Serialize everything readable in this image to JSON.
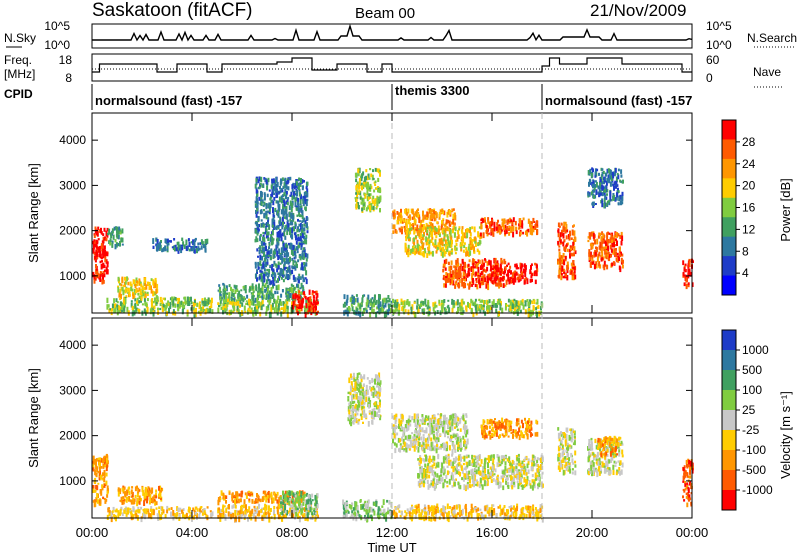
{
  "header": {
    "title": "Saskatoon (fitACF)",
    "beam": "Beam 00",
    "date": "21/Nov/2009"
  },
  "panels": {
    "nsky": {
      "left_label": "N.Sky",
      "right_label": "N.Search",
      "ticks": [
        "10^5",
        "10^0"
      ],
      "ticks_right": [
        "10^5",
        "10^0"
      ]
    },
    "freq": {
      "left_label_1": "Freq.",
      "left_label_2": "[MHz]",
      "left_ticks": [
        "18",
        "8"
      ],
      "right_label": "Nave",
      "right_ticks": [
        "60",
        "0"
      ]
    },
    "cpid": {
      "label": "CPID",
      "modes": [
        {
          "text": "normalsound (fast) -157",
          "start_hour": 0
        },
        {
          "text": "themis 3300",
          "start_hour": 12
        },
        {
          "text": "normalsound (fast) -157",
          "start_hour": 18
        }
      ]
    }
  },
  "chart_data": [
    {
      "type": "heatmap",
      "title": "",
      "ylabel": "Slant Range [km]",
      "xlabel": "",
      "ylim": [
        180,
        4600
      ],
      "xlim": [
        0,
        24
      ],
      "yticks": [
        1000,
        2000,
        3000,
        4000
      ],
      "colorbar_label": "Power [dB]",
      "colorbar_ticks": [
        "28",
        "24",
        "20",
        "16",
        "12",
        "8",
        "4"
      ],
      "colors": [
        "#ff0000",
        "#ff5a00",
        "#ff9600",
        "#ffcc00",
        "#80cc40",
        "#40a060",
        "#2d78a0",
        "#1e3cc8",
        "#0000ff"
      ],
      "regions": [
        {
          "x": [
            0.0,
            0.6
          ],
          "y": [
            900,
            2100
          ],
          "level": 0
        },
        {
          "x": [
            0.6,
            1.2
          ],
          "y": [
            1700,
            2100
          ],
          "level": 5
        },
        {
          "x": [
            1.0,
            2.6
          ],
          "y": [
            550,
            1000
          ],
          "level": 3
        },
        {
          "x": [
            0.5,
            4.8
          ],
          "y": [
            200,
            550
          ],
          "level": 4
        },
        {
          "x": [
            2.4,
            4.6
          ],
          "y": [
            1600,
            1850
          ],
          "level": 6
        },
        {
          "x": [
            5.0,
            8.5
          ],
          "y": [
            500,
            850
          ],
          "level": 5
        },
        {
          "x": [
            5.0,
            9.0
          ],
          "y": [
            200,
            500
          ],
          "level": 4
        },
        {
          "x": [
            8.0,
            9.0
          ],
          "y": [
            200,
            700
          ],
          "level": 0
        },
        {
          "x": [
            6.5,
            8.6
          ],
          "y": [
            900,
            3200
          ],
          "level": 6
        },
        {
          "x": [
            10.0,
            12.0
          ],
          "y": [
            200,
            600
          ],
          "level": 5
        },
        {
          "x": [
            10.5,
            11.5
          ],
          "y": [
            2500,
            3400
          ],
          "level": 4
        },
        {
          "x": [
            12.0,
            14.5
          ],
          "y": [
            2000,
            2500
          ],
          "level": 2
        },
        {
          "x": [
            12.5,
            15.5
          ],
          "y": [
            1500,
            2100
          ],
          "level": 3
        },
        {
          "x": [
            14.0,
            16.5
          ],
          "y": [
            800,
            1400
          ],
          "level": 1
        },
        {
          "x": [
            15.5,
            17.8
          ],
          "y": [
            900,
            1300
          ],
          "level": 0
        },
        {
          "x": [
            15.5,
            17.8
          ],
          "y": [
            1950,
            2300
          ],
          "level": 1
        },
        {
          "x": [
            12.0,
            18.0
          ],
          "y": [
            200,
            500
          ],
          "level": 4
        },
        {
          "x": [
            18.6,
            19.3
          ],
          "y": [
            1000,
            2200
          ],
          "level": 1
        },
        {
          "x": [
            19.8,
            21.2
          ],
          "y": [
            1200,
            2000
          ],
          "level": 1
        },
        {
          "x": [
            19.8,
            21.2
          ],
          "y": [
            2600,
            3400
          ],
          "level": 6
        },
        {
          "x": [
            23.6,
            24.0
          ],
          "y": [
            800,
            1400
          ],
          "level": 0
        }
      ]
    },
    {
      "type": "heatmap",
      "title": "",
      "ylabel": "Slant Range [km]",
      "xlabel": "Time UT",
      "ylim": [
        180,
        4600
      ],
      "xlim": [
        0,
        24
      ],
      "yticks": [
        1000,
        2000,
        3000,
        4000
      ],
      "xticks": [
        "00:00",
        "04:00",
        "08:00",
        "12:00",
        "16:00",
        "20:00",
        "00:00"
      ],
      "colorbar_label": "Velocity [m s⁻¹]",
      "colorbar_ticks": [
        "1000",
        "500",
        "100",
        "25",
        "-25",
        "-100",
        "-500",
        "-1000"
      ],
      "colors": [
        "#1e3cc8",
        "#2d78a0",
        "#40a060",
        "#80cc40",
        "#c8c8c8",
        "#ffcc00",
        "#ff9600",
        "#ff5a00",
        "#ff0000"
      ],
      "regions": [
        {
          "x": [
            0.0,
            0.6
          ],
          "y": [
            500,
            1600
          ],
          "level": 6
        },
        {
          "x": [
            1.0,
            2.8
          ],
          "y": [
            550,
            900
          ],
          "level": 6
        },
        {
          "x": [
            0.5,
            4.8
          ],
          "y": [
            200,
            450
          ],
          "level": 5
        },
        {
          "x": [
            5.0,
            8.5
          ],
          "y": [
            550,
            800
          ],
          "level": 6
        },
        {
          "x": [
            5.0,
            9.0
          ],
          "y": [
            200,
            500
          ],
          "level": 5
        },
        {
          "x": [
            7.5,
            9.0
          ],
          "y": [
            300,
            800
          ],
          "level": 3
        },
        {
          "x": [
            10.0,
            12.0
          ],
          "y": [
            200,
            600
          ],
          "level": 3
        },
        {
          "x": [
            10.2,
            11.5
          ],
          "y": [
            2300,
            3400
          ],
          "level": 4
        },
        {
          "x": [
            12.0,
            15.0
          ],
          "y": [
            1700,
            2500
          ],
          "level": 4
        },
        {
          "x": [
            13.0,
            18.0
          ],
          "y": [
            900,
            1600
          ],
          "level": 4
        },
        {
          "x": [
            15.5,
            17.8
          ],
          "y": [
            2000,
            2400
          ],
          "level": 6
        },
        {
          "x": [
            12.0,
            18.0
          ],
          "y": [
            200,
            500
          ],
          "level": 5
        },
        {
          "x": [
            18.6,
            19.3
          ],
          "y": [
            1200,
            2200
          ],
          "level": 4
        },
        {
          "x": [
            19.8,
            21.2
          ],
          "y": [
            1200,
            2000
          ],
          "level": 4
        },
        {
          "x": [
            20.2,
            21.0
          ],
          "y": [
            1600,
            2000
          ],
          "level": 6
        },
        {
          "x": [
            23.6,
            24.0
          ],
          "y": [
            500,
            1500
          ],
          "level": 7
        }
      ]
    }
  ]
}
